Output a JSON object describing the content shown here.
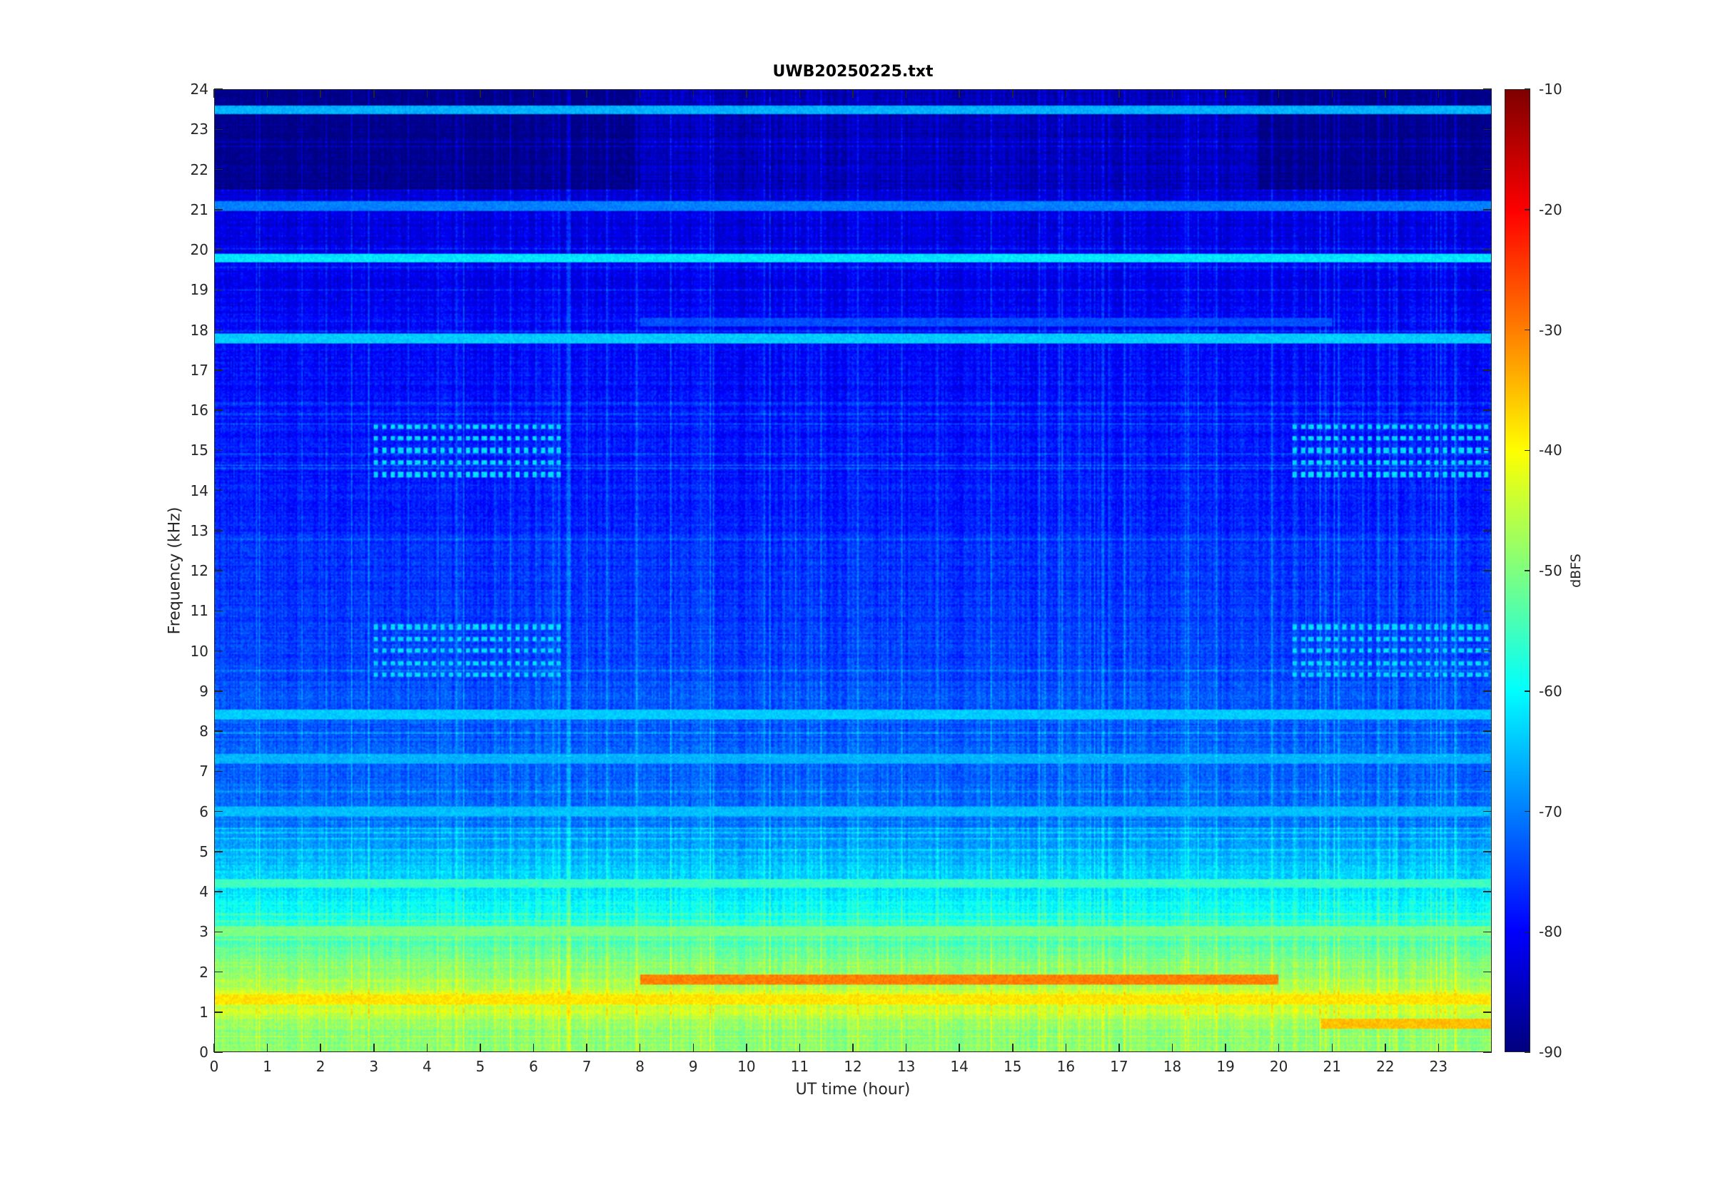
{
  "chart_data": {
    "type": "heatmap",
    "title": "UWB20250225.txt",
    "xlabel": "UT time (hour)",
    "ylabel": "Frequency (kHz)",
    "colorbar_label": "dBFS",
    "xlim": [
      0,
      24
    ],
    "ylim": [
      0,
      24
    ],
    "clim": [
      -90,
      -10
    ],
    "colormap": "jet",
    "x_ticks": [
      "0",
      "1",
      "2",
      "3",
      "4",
      "5",
      "6",
      "7",
      "8",
      "9",
      "10",
      "11",
      "12",
      "13",
      "14",
      "15",
      "16",
      "17",
      "18",
      "19",
      "20",
      "21",
      "22",
      "23"
    ],
    "y_ticks": [
      "0",
      "1",
      "2",
      "3",
      "4",
      "5",
      "6",
      "7",
      "8",
      "9",
      "10",
      "11",
      "12",
      "13",
      "14",
      "15",
      "16",
      "17",
      "18",
      "19",
      "20",
      "21",
      "22",
      "23",
      "24"
    ],
    "colorbar_ticks": [
      "-10",
      "-20",
      "-30",
      "-40",
      "-50",
      "-60",
      "-70",
      "-80",
      "-90"
    ],
    "colorbar_tick_values": [
      -10,
      -20,
      -30,
      -40,
      -50,
      -60,
      -70,
      -80,
      -90
    ],
    "level_profile_khz": [
      {
        "f": 0.0,
        "dbfs": -48
      },
      {
        "f": 0.5,
        "dbfs": -50
      },
      {
        "f": 1.0,
        "dbfs": -44
      },
      {
        "f": 1.5,
        "dbfs": -45
      },
      {
        "f": 2.0,
        "dbfs": -48
      },
      {
        "f": 3.0,
        "dbfs": -56
      },
      {
        "f": 4.0,
        "dbfs": -62
      },
      {
        "f": 5.0,
        "dbfs": -66
      },
      {
        "f": 6.0,
        "dbfs": -72
      },
      {
        "f": 8.0,
        "dbfs": -73
      },
      {
        "f": 10.0,
        "dbfs": -75
      },
      {
        "f": 14.0,
        "dbfs": -78
      },
      {
        "f": 18.0,
        "dbfs": -80
      },
      {
        "f": 20.0,
        "dbfs": -82
      },
      {
        "f": 24.0,
        "dbfs": -84
      }
    ],
    "spectral_lines": [
      {
        "f_khz": 19.8,
        "dbfs": -62,
        "t_start": 0,
        "t_end": 24
      },
      {
        "f_khz": 21.1,
        "dbfs": -70,
        "t_start": 0,
        "t_end": 24
      },
      {
        "f_khz": 18.2,
        "dbfs": -74,
        "t_start": 8,
        "t_end": 21
      },
      {
        "f_khz": 17.8,
        "dbfs": -64,
        "t_start": 0,
        "t_end": 24
      },
      {
        "f_khz": 23.5,
        "dbfs": -66,
        "t_start": 0,
        "t_end": 24
      },
      {
        "f_khz": 1.8,
        "dbfs": -30,
        "t_start": 8,
        "t_end": 20
      },
      {
        "f_khz": 1.3,
        "dbfs": -38,
        "t_start": 0,
        "t_end": 24
      },
      {
        "f_khz": 4.2,
        "dbfs": -55,
        "t_start": 0,
        "t_end": 24
      },
      {
        "f_khz": 3.0,
        "dbfs": -50,
        "t_start": 0,
        "t_end": 24
      },
      {
        "f_khz": 6.0,
        "dbfs": -65,
        "t_start": 0,
        "t_end": 24
      },
      {
        "f_khz": 8.4,
        "dbfs": -64,
        "t_start": 0,
        "t_end": 24
      },
      {
        "f_khz": 7.3,
        "dbfs": -66,
        "t_start": 0,
        "t_end": 24
      },
      {
        "f_khz": 0.7,
        "dbfs": -35,
        "t_start": 20.8,
        "t_end": 24
      }
    ],
    "harmonic_bands": [
      {
        "f_khz": 15.0,
        "t_start": 2.9,
        "t_end": 6.5
      },
      {
        "f_khz": 10.0,
        "t_start": 2.9,
        "t_end": 6.5
      },
      {
        "f_khz": 15.0,
        "t_start": 20.2,
        "t_end": 24
      },
      {
        "f_khz": 10.0,
        "t_start": 20.2,
        "t_end": 24
      }
    ],
    "quiet_band_khz": [
      21.5,
      24
    ],
    "grid": false
  }
}
